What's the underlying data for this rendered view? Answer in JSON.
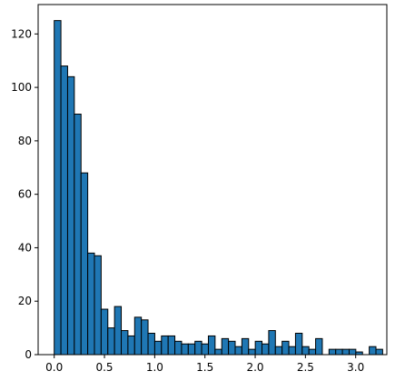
{
  "chart_data": {
    "type": "bar",
    "subtype": "histogram",
    "title": "",
    "xlabel": "",
    "ylabel": "",
    "bar_color": "#1f77b4",
    "edge_color": "#000000",
    "bin_start": 0.0,
    "bin_width": 0.0667,
    "counts": [
      125,
      108,
      104,
      90,
      68,
      38,
      37,
      17,
      10,
      18,
      9,
      7,
      14,
      13,
      8,
      5,
      7,
      7,
      5,
      4,
      4,
      5,
      4,
      7,
      2,
      6,
      5,
      3,
      6,
      2,
      5,
      4,
      9,
      3,
      5,
      3,
      8,
      3,
      2,
      6,
      0,
      2,
      2,
      2,
      2,
      1,
      0,
      3,
      2
    ],
    "xlim": [
      -0.16,
      3.31
    ],
    "ylim": [
      0,
      131
    ],
    "x_ticks": [
      0.0,
      0.5,
      1.0,
      1.5,
      2.0,
      2.5,
      3.0
    ],
    "x_tick_labels": [
      "0.0",
      "0.5",
      "1.0",
      "1.5",
      "2.0",
      "2.5",
      "3.0"
    ],
    "y_ticks": [
      0,
      20,
      40,
      60,
      80,
      100,
      120
    ],
    "y_tick_labels": [
      "0",
      "20",
      "40",
      "60",
      "80",
      "100",
      "120"
    ],
    "grid": false,
    "legend": "none"
  }
}
